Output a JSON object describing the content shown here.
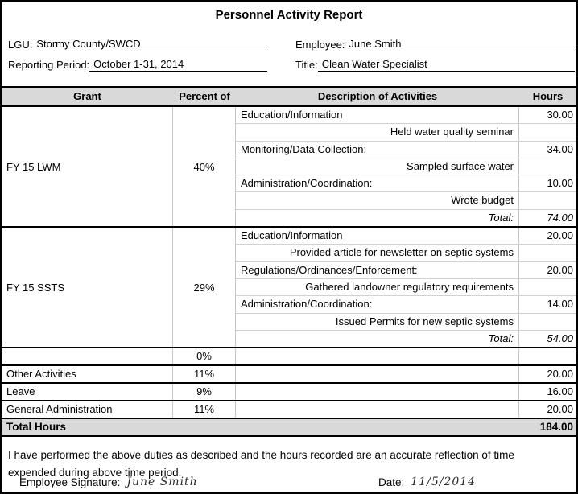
{
  "title": "Personnel Activity Report",
  "fields": {
    "lgu_label": "LGU:",
    "lgu_value": "Stormy County/SWCD",
    "reporting_period_label": "Reporting Period:",
    "reporting_period_value": "October 1-31, 2014",
    "employee_label": "Employee:",
    "employee_value": "June Smith",
    "title_label": "Title:",
    "title_value": "Clean Water Specialist"
  },
  "table": {
    "headers": [
      "Grant",
      "Percent of",
      "Description of Activities",
      "Hours"
    ],
    "grant_sections": [
      {
        "grant": "FY 15 LWM",
        "percent": "40%",
        "rows": [
          {
            "description": "Education/Information",
            "hours": "30.00"
          },
          {
            "description": "Held water quality seminar",
            "hours": ""
          },
          {
            "description": "Monitoring/Data Collection:",
            "hours": "34.00"
          },
          {
            "description": "Sampled surface water",
            "hours": ""
          },
          {
            "description": "Administration/Coordination:",
            "hours": "10.00"
          },
          {
            "description": "Wrote budget",
            "hours": ""
          },
          {
            "description": "Total:",
            "hours": "74.00"
          }
        ]
      },
      {
        "grant": "FY 15 SSTS",
        "percent": "29%",
        "rows": [
          {
            "description": "Education/Information",
            "hours": "20.00"
          },
          {
            "description": "Provided article for newsletter on septic systems",
            "hours": ""
          },
          {
            "description": "Regulations/Ordinances/Enforcement:",
            "hours": "20.00"
          },
          {
            "description": "Gathered landowner regulatory requirements",
            "hours": ""
          },
          {
            "description": "Administration/Coordination:",
            "hours": "14.00"
          },
          {
            "description": "Issued Permits for new septic systems",
            "hours": ""
          },
          {
            "description": "Total:",
            "hours": "54.00"
          }
        ]
      }
    ],
    "summary_rows": [
      {
        "label": "",
        "percent": "0%",
        "hours": ""
      },
      {
        "label": "Other Activities",
        "percent": "11%",
        "hours": "20.00"
      },
      {
        "label": "Leave",
        "percent": "9%",
        "hours": "16.00"
      },
      {
        "label": "General Administration",
        "percent": "11%",
        "hours": "20.00"
      }
    ],
    "total_label": "Total Hours",
    "total_hours": "184.00"
  },
  "certification": {
    "line1": "I have performed the above duties as described and the hours recorded are an accurate reflection of time",
    "line2": "expended during above time period."
  },
  "signature": {
    "label": "Employee Signature:",
    "value": "June Smith",
    "date_label": "Date:",
    "date_value": "11/5/2014"
  },
  "colors": {
    "header_bg": "#d9d9d9",
    "grid_light": "#c6c6c6",
    "border": "#000000"
  }
}
